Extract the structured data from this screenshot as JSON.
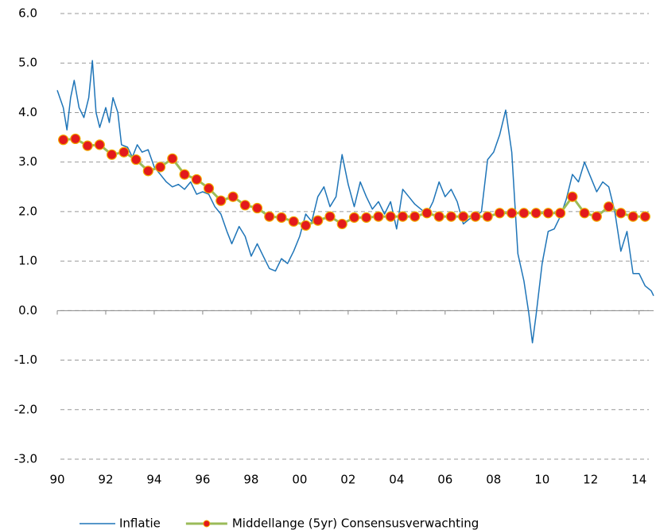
{
  "chart_data": {
    "type": "line",
    "xlim": [
      1990,
      2014.6
    ],
    "ylim": [
      -3,
      6
    ],
    "yticks": [
      {
        "value": 6,
        "label": "6.0"
      },
      {
        "value": 5,
        "label": "5.0"
      },
      {
        "value": 4,
        "label": "4.0"
      },
      {
        "value": 3,
        "label": "3.0"
      },
      {
        "value": 2,
        "label": "2.0"
      },
      {
        "value": 1,
        "label": "1.0"
      },
      {
        "value": 0,
        "label": "0.0"
      },
      {
        "value": -1,
        "label": "-1.0"
      },
      {
        "value": -2,
        "label": "-2.0"
      },
      {
        "value": -3,
        "label": "-3.0"
      }
    ],
    "xticks": [
      {
        "value": 1990,
        "label": "90"
      },
      {
        "value": 1992,
        "label": "92"
      },
      {
        "value": 1994,
        "label": "94"
      },
      {
        "value": 1996,
        "label": "96"
      },
      {
        "value": 1998,
        "label": "98"
      },
      {
        "value": 2000,
        "label": "00"
      },
      {
        "value": 2002,
        "label": "02"
      },
      {
        "value": 2004,
        "label": "04"
      },
      {
        "value": 2006,
        "label": "06"
      },
      {
        "value": 2008,
        "label": "08"
      },
      {
        "value": 2010,
        "label": "10"
      },
      {
        "value": 2012,
        "label": "12"
      },
      {
        "value": 2014,
        "label": "14"
      }
    ],
    "grid": true,
    "legend": "bottom",
    "series": [
      {
        "name": "Inflatie",
        "color": "#1f75b8",
        "markers": false,
        "x": [
          1990.0,
          1990.25,
          1990.4,
          1990.55,
          1990.7,
          1990.9,
          1991.1,
          1991.3,
          1991.45,
          1991.6,
          1991.75,
          1992.0,
          1992.15,
          1992.3,
          1992.5,
          1992.65,
          1992.9,
          1993.1,
          1993.3,
          1993.5,
          1993.75,
          1994.0,
          1994.25,
          1994.5,
          1994.75,
          1995.0,
          1995.25,
          1995.5,
          1995.75,
          1996.0,
          1996.25,
          1996.5,
          1996.75,
          1997.0,
          1997.2,
          1997.5,
          1997.75,
          1998.0,
          1998.25,
          1998.5,
          1998.75,
          1999.0,
          1999.25,
          1999.5,
          1999.75,
          2000.0,
          2000.25,
          2000.5,
          2000.75,
          2001.0,
          2001.25,
          2001.5,
          2001.75,
          2002.0,
          2002.25,
          2002.5,
          2002.75,
          2003.0,
          2003.25,
          2003.5,
          2003.75,
          2004.0,
          2004.25,
          2004.5,
          2004.75,
          2005.0,
          2005.25,
          2005.5,
          2005.75,
          2006.0,
          2006.25,
          2006.5,
          2006.75,
          2007.0,
          2007.25,
          2007.5,
          2007.75,
          2008.0,
          2008.25,
          2008.5,
          2008.75,
          2009.0,
          2009.25,
          2009.45,
          2009.6,
          2009.75,
          2010.0,
          2010.25,
          2010.5,
          2010.75,
          2011.0,
          2011.25,
          2011.5,
          2011.75,
          2012.0,
          2012.25,
          2012.5,
          2012.75,
          2013.0,
          2013.25,
          2013.5,
          2013.75,
          2014.0,
          2014.25,
          2014.5,
          2014.6
        ],
        "values": [
          4.45,
          4.1,
          3.65,
          4.3,
          4.65,
          4.1,
          3.9,
          4.3,
          5.05,
          4.0,
          3.7,
          4.1,
          3.8,
          4.3,
          4.0,
          3.35,
          3.3,
          3.1,
          3.35,
          3.2,
          3.25,
          2.9,
          2.75,
          2.6,
          2.5,
          2.55,
          2.45,
          2.6,
          2.35,
          2.4,
          2.35,
          2.1,
          1.95,
          1.6,
          1.35,
          1.7,
          1.5,
          1.1,
          1.35,
          1.1,
          0.85,
          0.8,
          1.05,
          0.95,
          1.2,
          1.5,
          1.95,
          1.8,
          2.3,
          2.5,
          2.1,
          2.3,
          3.15,
          2.55,
          2.1,
          2.6,
          2.3,
          2.05,
          2.2,
          1.95,
          2.2,
          1.65,
          2.45,
          2.3,
          2.15,
          2.05,
          1.95,
          2.2,
          2.6,
          2.3,
          2.45,
          2.2,
          1.75,
          1.85,
          1.9,
          2.0,
          3.05,
          3.2,
          3.55,
          4.05,
          3.2,
          1.15,
          0.6,
          -0.05,
          -0.65,
          -0.1,
          0.95,
          1.6,
          1.65,
          1.9,
          2.25,
          2.75,
          2.6,
          3.0,
          2.7,
          2.4,
          2.6,
          2.5,
          2.0,
          1.2,
          1.6,
          0.75,
          0.75,
          0.5,
          0.4,
          0.3
        ]
      },
      {
        "name": "Middellange (5yr) Consensusverwachting",
        "color": "#9bbb59",
        "markers": true,
        "marker_color": "#e31a1c",
        "x": [
          1990.25,
          1990.75,
          1991.25,
          1991.75,
          1992.25,
          1992.75,
          1993.25,
          1993.75,
          1994.25,
          1994.75,
          1995.25,
          1995.75,
          1996.25,
          1996.75,
          1997.25,
          1997.75,
          1998.25,
          1998.75,
          1999.25,
          1999.75,
          2000.25,
          2000.75,
          2001.25,
          2001.75,
          2002.25,
          2002.75,
          2003.25,
          2003.75,
          2004.25,
          2004.75,
          2005.25,
          2005.75,
          2006.25,
          2006.75,
          2007.25,
          2007.75,
          2008.25,
          2008.75,
          2009.25,
          2009.75,
          2010.25,
          2010.75,
          2011.25,
          2011.75,
          2012.25,
          2012.75,
          2013.25,
          2013.75,
          2014.25
        ],
        "values": [
          3.45,
          3.47,
          3.33,
          3.35,
          3.15,
          3.2,
          3.05,
          2.82,
          2.9,
          3.07,
          2.75,
          2.65,
          2.47,
          2.22,
          2.3,
          2.13,
          2.07,
          1.9,
          1.88,
          1.8,
          1.72,
          1.82,
          1.9,
          1.75,
          1.88,
          1.88,
          1.9,
          1.9,
          1.9,
          1.9,
          1.97,
          1.9,
          1.9,
          1.9,
          1.9,
          1.9,
          1.97,
          1.97,
          1.97,
          1.97,
          1.97,
          1.97,
          2.3,
          1.97,
          1.9,
          2.1,
          1.97,
          1.9,
          1.9
        ]
      }
    ]
  }
}
